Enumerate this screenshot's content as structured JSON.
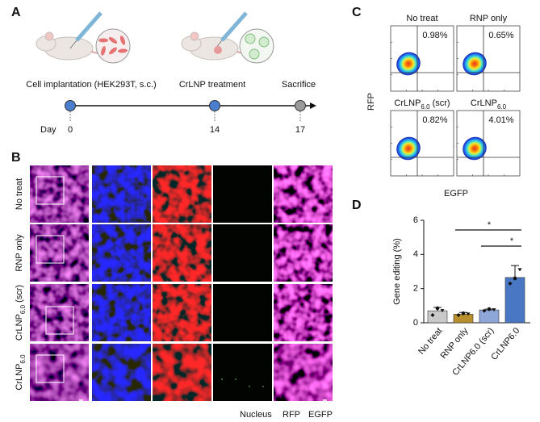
{
  "panel_a": {
    "label": "A",
    "day_label": "Day",
    "events": [
      {
        "label": "Cell implantation (HEK293T, s.c.)",
        "day": 0
      },
      {
        "label": "CrLNP treatment",
        "day": 14
      },
      {
        "label": "Sacrifice",
        "day": 17
      }
    ]
  },
  "panel_b": {
    "label": "B",
    "rows": [
      {
        "name": "No treat"
      },
      {
        "name": "RNP only"
      },
      {
        "name": "CrLNP",
        "sub": "6.0",
        "suffix": " (scr)"
      },
      {
        "name": "CrLNP",
        "sub": "6.0"
      }
    ],
    "channels": [
      {
        "name": "Nucleus",
        "color": "#1e2bd6"
      },
      {
        "name": "RFP",
        "color": "#e8271f"
      },
      {
        "name": "EGFP",
        "color": "#9be27f"
      }
    ]
  },
  "panel_c": {
    "label": "C",
    "y_label": "RFP",
    "x_label": "EGFP",
    "plots": [
      {
        "name": "No treat",
        "percent": "0.98%"
      },
      {
        "name": "RNP only",
        "percent": "0.65%"
      },
      {
        "name": "CrLNP",
        "sub": "6.0",
        "suffix": " (scr)",
        "percent": "0.82%"
      },
      {
        "name": "CrLNP",
        "sub": "6.0",
        "percent": "4.01%"
      }
    ]
  },
  "chart_data": {
    "type": "bar",
    "label": "D",
    "ylabel": "Gene editing (%)",
    "categories": [
      "No treat",
      "RNP only",
      "CrLNP6.0 (scr)",
      "CrLNP6.0"
    ],
    "values": [
      0.7,
      0.5,
      0.75,
      2.65
    ],
    "errors": [
      0.2,
      0.1,
      0.05,
      0.7
    ],
    "points": [
      [
        0.45,
        0.85,
        0.7
      ],
      [
        0.45,
        0.55,
        0.5
      ],
      [
        0.7,
        0.8,
        0.75
      ],
      [
        2.3,
        2.6,
        3.1
      ]
    ],
    "colors": [
      "#c9c9c9",
      "#b98f2b",
      "#8ea7d8",
      "#4a77c4"
    ],
    "ylim": [
      0,
      6
    ],
    "yticks": [
      0,
      2,
      4,
      6
    ],
    "significance": [
      {
        "pair": [
          1,
          3
        ],
        "label": "*"
      },
      {
        "pair": [
          2,
          3
        ],
        "label": "*"
      }
    ]
  }
}
